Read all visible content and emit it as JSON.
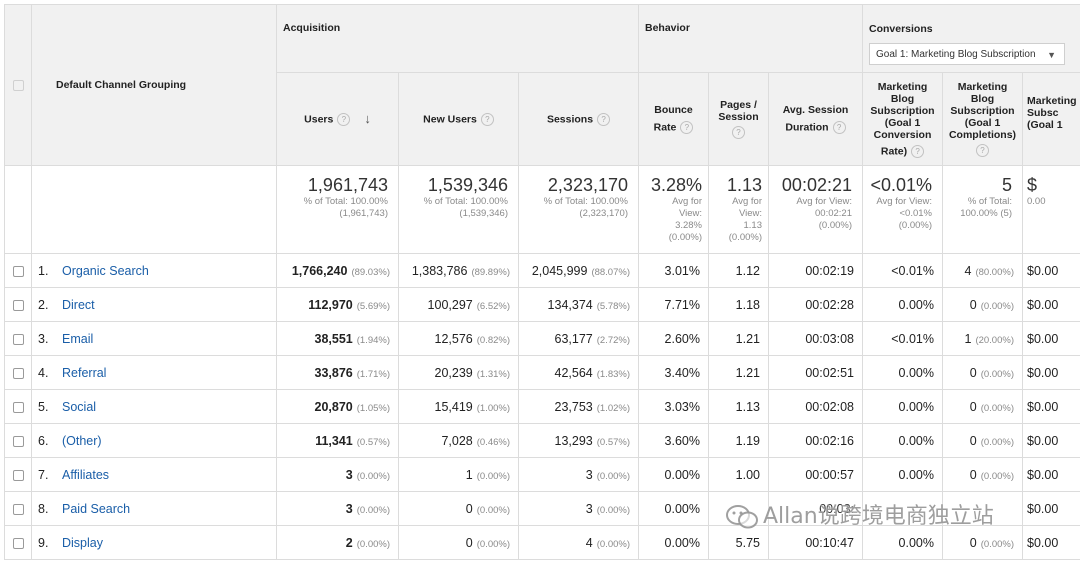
{
  "headers": {
    "dimension": "Default Channel Grouping",
    "acquisition": "Acquisition",
    "behavior": "Behavior",
    "conversions": "Conversions",
    "goal_select": "Goal 1: Marketing Blog Subscription",
    "users": "Users",
    "new_users": "New Users",
    "sessions": "Sessions",
    "bounce_line1": "Bounce",
    "bounce_line2": "Rate",
    "pages_line1": "Pages /",
    "pages_line2": "Session",
    "avg_line1": "Avg. Session",
    "avg_line2": "Duration",
    "conv_rate_lines": [
      "Marketing",
      "Blog",
      "Subscription",
      "(Goal 1",
      "Conversion",
      "Rate)"
    ],
    "completions_lines": [
      "Marketing",
      "Blog",
      "Subscription",
      "(Goal 1",
      "Completions)"
    ],
    "value_lines": [
      "Marketing",
      "Subsc",
      "(Goal 1"
    ],
    "help_icon": "?",
    "sort_arrow": "↓"
  },
  "totals": {
    "users": "1,961,743",
    "users_sub": [
      "% of Total: 100.00%",
      "(1,961,743)"
    ],
    "new_users": "1,539,346",
    "new_users_sub": [
      "% of Total: 100.00%",
      "(1,539,346)"
    ],
    "sessions": "2,323,170",
    "sessions_sub": [
      "% of Total: 100.00%",
      "(2,323,170)"
    ],
    "bounce": "3.28%",
    "bounce_sub": [
      "Avg for",
      "View:",
      "3.28%",
      "(0.00%)"
    ],
    "pages": "1.13",
    "pages_sub": [
      "Avg for",
      "View:",
      "1.13",
      "(0.00%)"
    ],
    "duration": "00:02:21",
    "duration_sub": [
      "Avg for View:",
      "00:02:21",
      "(0.00%)"
    ],
    "conv_rate": "<0.01%",
    "conv_rate_sub": [
      "Avg for View:",
      "<0.01%",
      "(0.00%)"
    ],
    "completions": "5",
    "completions_sub": [
      "% of Total:",
      "100.00% (5)"
    ],
    "value": "$",
    "value_sub": [
      "0.00"
    ]
  },
  "rows": [
    {
      "idx": "1.",
      "channel": "Organic Search",
      "users": "1,766,240",
      "users_pct": "(89.03%)",
      "new_users": "1,383,786",
      "new_users_pct": "(89.89%)",
      "sessions": "2,045,999",
      "sessions_pct": "(88.07%)",
      "bounce": "3.01%",
      "pages": "1.12",
      "duration": "00:02:19",
      "conv_rate": "<0.01%",
      "completions": "4",
      "completions_pct": "(80.00%)",
      "value": "$0.00"
    },
    {
      "idx": "2.",
      "channel": "Direct",
      "users": "112,970",
      "users_pct": "(5.69%)",
      "new_users": "100,297",
      "new_users_pct": "(6.52%)",
      "sessions": "134,374",
      "sessions_pct": "(5.78%)",
      "bounce": "7.71%",
      "pages": "1.18",
      "duration": "00:02:28",
      "conv_rate": "0.00%",
      "completions": "0",
      "completions_pct": "(0.00%)",
      "value": "$0.00"
    },
    {
      "idx": "3.",
      "channel": "Email",
      "users": "38,551",
      "users_pct": "(1.94%)",
      "new_users": "12,576",
      "new_users_pct": "(0.82%)",
      "sessions": "63,177",
      "sessions_pct": "(2.72%)",
      "bounce": "2.60%",
      "pages": "1.21",
      "duration": "00:03:08",
      "conv_rate": "<0.01%",
      "completions": "1",
      "completions_pct": "(20.00%)",
      "value": "$0.00"
    },
    {
      "idx": "4.",
      "channel": "Referral",
      "users": "33,876",
      "users_pct": "(1.71%)",
      "new_users": "20,239",
      "new_users_pct": "(1.31%)",
      "sessions": "42,564",
      "sessions_pct": "(1.83%)",
      "bounce": "3.40%",
      "pages": "1.21",
      "duration": "00:02:51",
      "conv_rate": "0.00%",
      "completions": "0",
      "completions_pct": "(0.00%)",
      "value": "$0.00"
    },
    {
      "idx": "5.",
      "channel": "Social",
      "users": "20,870",
      "users_pct": "(1.05%)",
      "new_users": "15,419",
      "new_users_pct": "(1.00%)",
      "sessions": "23,753",
      "sessions_pct": "(1.02%)",
      "bounce": "3.03%",
      "pages": "1.13",
      "duration": "00:02:08",
      "conv_rate": "0.00%",
      "completions": "0",
      "completions_pct": "(0.00%)",
      "value": "$0.00"
    },
    {
      "idx": "6.",
      "channel": "(Other)",
      "users": "11,341",
      "users_pct": "(0.57%)",
      "new_users": "7,028",
      "new_users_pct": "(0.46%)",
      "sessions": "13,293",
      "sessions_pct": "(0.57%)",
      "bounce": "3.60%",
      "pages": "1.19",
      "duration": "00:02:16",
      "conv_rate": "0.00%",
      "completions": "0",
      "completions_pct": "(0.00%)",
      "value": "$0.00"
    },
    {
      "idx": "7.",
      "channel": "Affiliates",
      "users": "3",
      "users_pct": "(0.00%)",
      "new_users": "1",
      "new_users_pct": "(0.00%)",
      "sessions": "3",
      "sessions_pct": "(0.00%)",
      "bounce": "0.00%",
      "pages": "1.00",
      "duration": "00:00:57",
      "conv_rate": "0.00%",
      "completions": "0",
      "completions_pct": "(0.00%)",
      "value": "$0.00"
    },
    {
      "idx": "8.",
      "channel": "Paid Search",
      "users": "3",
      "users_pct": "(0.00%)",
      "new_users": "0",
      "new_users_pct": "(0.00%)",
      "sessions": "3",
      "sessions_pct": "(0.00%)",
      "bounce": "0.00%",
      "pages": "",
      "duration": "00:03:",
      "conv_rate": "",
      "completions": "",
      "completions_pct": "",
      "value": "$0.00"
    },
    {
      "idx": "9.",
      "channel": "Display",
      "users": "2",
      "users_pct": "(0.00%)",
      "new_users": "0",
      "new_users_pct": "(0.00%)",
      "sessions": "4",
      "sessions_pct": "(0.00%)",
      "bounce": "0.00%",
      "pages": "5.75",
      "duration": "00:10:47",
      "conv_rate": "0.00%",
      "completions": "0",
      "completions_pct": "(0.00%)",
      "value": "$0.00"
    }
  ],
  "watermark": "Allan说跨境电商独立站",
  "colors": {
    "link": "#1a5ea8",
    "header_bg": "#f1f1f1",
    "border": "#dcdcdc"
  }
}
